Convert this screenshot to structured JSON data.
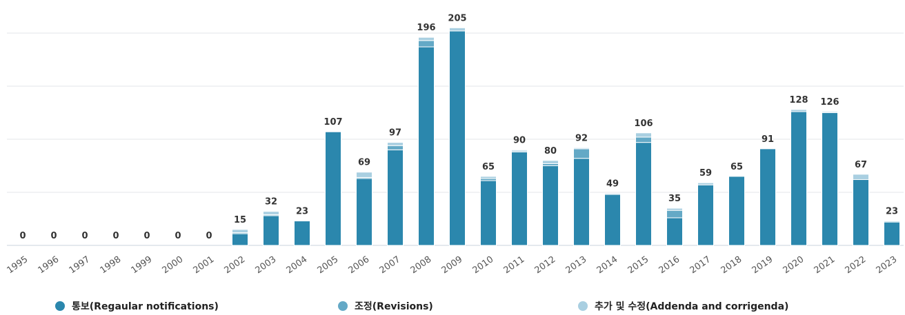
{
  "colors": {
    "regular": "#2b87ad",
    "revisions": "#64a9c6",
    "addenda": "#a9cfe1"
  },
  "chart_data": {
    "type": "bar",
    "stacked": true,
    "grid": true,
    "legend_position": "bottom",
    "ylim": [
      0,
      210
    ],
    "categories": [
      "1995",
      "1996",
      "1997",
      "1998",
      "1999",
      "2000",
      "2001",
      "2002",
      "2003",
      "2004",
      "2005",
      "2006",
      "2007",
      "2008",
      "2009",
      "2010",
      "2011",
      "2012",
      "2013",
      "2014",
      "2015",
      "2016",
      "2017",
      "2018",
      "2019",
      "2020",
      "2021",
      "2022",
      "2023"
    ],
    "totals": [
      0,
      0,
      0,
      0,
      0,
      0,
      0,
      15,
      32,
      23,
      107,
      69,
      97,
      196,
      205,
      65,
      90,
      80,
      92,
      49,
      106,
      35,
      59,
      65,
      91,
      128,
      126,
      67,
      23
    ],
    "series": [
      {
        "name": "통보(Regaular notifications)",
        "color_key": "regular",
        "values": [
          0,
          0,
          0,
          0,
          0,
          0,
          0,
          11,
          28,
          23,
          107,
          63,
          90,
          187,
          202,
          61,
          88,
          75,
          82,
          48,
          97,
          26,
          57,
          65,
          91,
          126,
          125,
          62,
          22
        ]
      },
      {
        "name": "조정(Revisions)",
        "color_key": "revisions",
        "values": [
          0,
          0,
          0,
          0,
          0,
          0,
          0,
          1,
          1,
          0,
          0,
          1,
          4,
          6,
          0,
          2,
          1,
          2,
          9,
          0,
          5,
          7,
          0,
          0,
          0,
          0,
          0,
          0,
          0
        ]
      },
      {
        "name": "추가 및 수정(Addenda and corrigenda)",
        "color_key": "addenda",
        "values": [
          0,
          0,
          0,
          0,
          0,
          0,
          0,
          3,
          3,
          0,
          0,
          5,
          3,
          3,
          3,
          2,
          1,
          3,
          1,
          1,
          4,
          2,
          2,
          0,
          0,
          2,
          1,
          5,
          1
        ]
      }
    ]
  }
}
